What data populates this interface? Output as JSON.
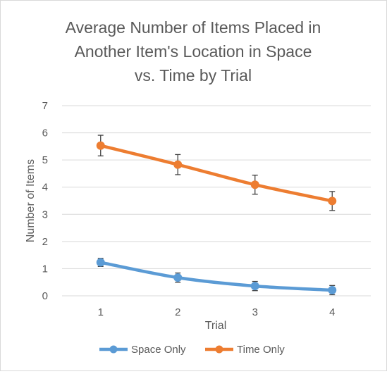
{
  "chart_data": {
    "type": "line",
    "title": [
      "Average Number of Items Placed in",
      "Another Item's Location in Space",
      "vs. Time by Trial"
    ],
    "xlabel": "Trial",
    "ylabel": "Number of Items",
    "categories": [
      "1",
      "2",
      "3",
      "4"
    ],
    "ylim": [
      0,
      7
    ],
    "yticks": [
      "0",
      "1",
      "2",
      "3",
      "4",
      "5",
      "6",
      "7"
    ],
    "grid": true,
    "legend_position": "bottom",
    "series": [
      {
        "name": "Space Only",
        "color": "#5b9bd5",
        "values": [
          1.23,
          0.67,
          0.36,
          0.21
        ],
        "error": [
          0.15,
          0.17,
          0.17,
          0.17
        ]
      },
      {
        "name": "Time Only",
        "color": "#ed7d31",
        "values": [
          5.53,
          4.83,
          4.09,
          3.49
        ],
        "error": [
          0.38,
          0.37,
          0.35,
          0.35
        ]
      }
    ]
  }
}
